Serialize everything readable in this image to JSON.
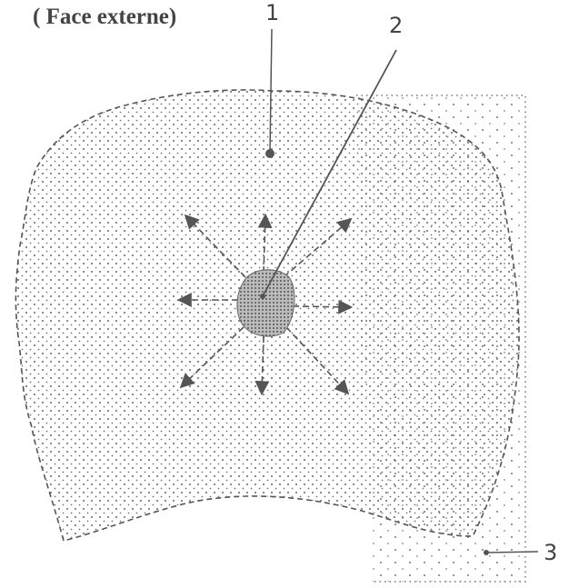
{
  "header": {
    "title": "( Face externe)"
  },
  "labels": [
    {
      "label": "1"
    },
    {
      "label": "2"
    },
    {
      "label": "3"
    }
  ]
}
